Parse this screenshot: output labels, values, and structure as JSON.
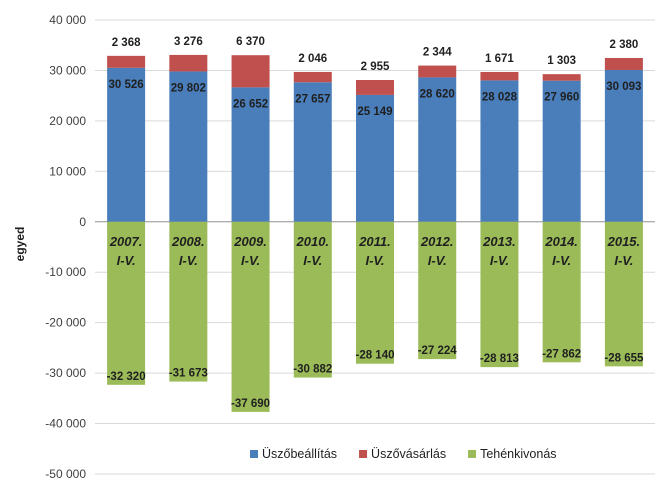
{
  "chart_data": {
    "type": "bar",
    "stacked": true,
    "ylabel": "egyed",
    "ylim": [
      -50000,
      40000
    ],
    "yticks": [
      40000,
      30000,
      20000,
      10000,
      0,
      -10000,
      -20000,
      -30000,
      -40000,
      -50000
    ],
    "ytick_labels": [
      "40 000",
      "30 000",
      "20 000",
      "10 000",
      "0",
      "-10 000",
      "-20 000",
      "-30 000",
      "-40 000",
      "-50 000"
    ],
    "grid": true,
    "legend_position": "bottom",
    "categories": [
      [
        "2007.",
        "I-V."
      ],
      [
        "2008.",
        "I-V."
      ],
      [
        "2009.",
        "I-V."
      ],
      [
        "2010.",
        "I-V."
      ],
      [
        "2011.",
        "I-V."
      ],
      [
        "2012.",
        "I-V."
      ],
      [
        "2013.",
        "I-V."
      ],
      [
        "2014.",
        "I-V."
      ],
      [
        "2015.",
        "I-V."
      ]
    ],
    "series": [
      {
        "name": "Üszőbeállítás",
        "color": "#4a7ebb",
        "values": [
          30526,
          29802,
          26652,
          27657,
          25149,
          28620,
          28028,
          27960,
          30093
        ],
        "labels": [
          "30 526",
          "29 802",
          "26 652",
          "27 657",
          "25 149",
          "28 620",
          "28 028",
          "27 960",
          "30 093"
        ]
      },
      {
        "name": "Üszővásárlás",
        "color": "#c0504d",
        "values": [
          2368,
          3276,
          6370,
          2046,
          2955,
          2344,
          1671,
          1303,
          2380
        ],
        "labels": [
          "2 368",
          "3 276",
          "6 370",
          "2 046",
          "2 955",
          "2 344",
          "1 671",
          "1 303",
          "2 380"
        ]
      },
      {
        "name": "Tehénkivonás",
        "color": "#9bbb59",
        "values": [
          -32320,
          -31673,
          -37690,
          -30882,
          -28140,
          -27224,
          -28813,
          -27862,
          -28655
        ],
        "labels": [
          "-32 320",
          "-31 673",
          "-37 690",
          "-30 882",
          "-28 140",
          "-27 224",
          "-28 813",
          "-27 862",
          "-28 655"
        ]
      }
    ]
  }
}
